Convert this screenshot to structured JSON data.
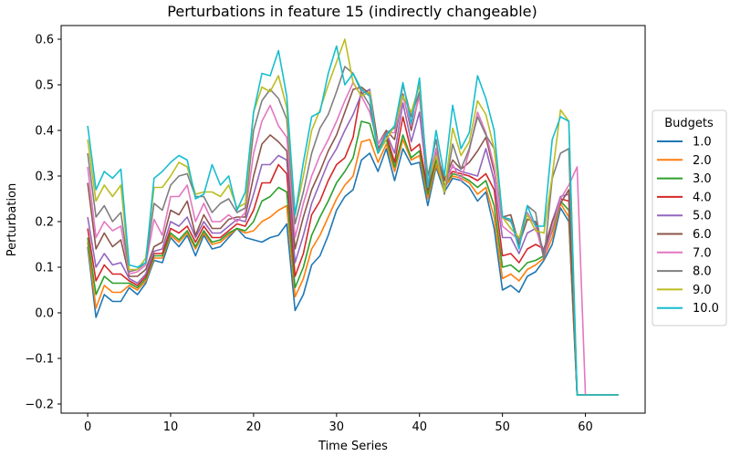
{
  "chart_data": {
    "type": "line",
    "title": "Perturbations in feature 15 (indirectly changeable)",
    "xlabel": "Time Series",
    "ylabel": "Perturbation",
    "xlim": [
      -3.2,
      67.2
    ],
    "ylim": [
      -0.22,
      0.63
    ],
    "xticks": [
      0,
      10,
      20,
      30,
      40,
      50,
      60
    ],
    "yticks": [
      -0.2,
      -0.1,
      0.0,
      0.1,
      0.2,
      0.3,
      0.4,
      0.5,
      0.6
    ],
    "grid": false,
    "legend_title": "Budgets",
    "legend_position": "outside-right",
    "x": [
      0,
      1,
      2,
      3,
      4,
      5,
      6,
      7,
      8,
      9,
      10,
      11,
      12,
      13,
      14,
      15,
      16,
      17,
      18,
      19,
      20,
      21,
      22,
      23,
      24,
      25,
      26,
      27,
      28,
      29,
      30,
      31,
      32,
      33,
      34,
      35,
      36,
      37,
      38,
      39,
      40,
      41,
      42,
      43,
      44,
      45,
      46,
      47,
      48,
      49,
      50,
      51,
      52,
      53,
      54,
      55,
      56,
      57,
      58,
      59,
      60,
      61,
      62,
      63,
      64
    ],
    "series": [
      {
        "name": "1.0",
        "color": "#1f77b4",
        "values": [
          0.145,
          -0.01,
          0.04,
          0.025,
          0.025,
          0.055,
          0.04,
          0.065,
          0.115,
          0.11,
          0.165,
          0.145,
          0.17,
          0.125,
          0.17,
          0.14,
          0.145,
          0.165,
          0.185,
          0.165,
          0.16,
          0.155,
          0.165,
          0.17,
          0.195,
          0.005,
          0.04,
          0.105,
          0.125,
          0.17,
          0.225,
          0.255,
          0.27,
          0.335,
          0.35,
          0.31,
          0.36,
          0.29,
          0.36,
          0.325,
          0.33,
          0.235,
          0.32,
          0.265,
          0.295,
          0.29,
          0.275,
          0.245,
          0.265,
          0.185,
          0.05,
          0.06,
          0.045,
          0.08,
          0.09,
          0.115,
          0.15,
          0.23,
          0.2,
          -0.18,
          -0.18,
          -0.18,
          -0.18,
          -0.18,
          -0.18
        ]
      },
      {
        "name": "2.0",
        "color": "#ff7f0e",
        "values": [
          0.155,
          0.01,
          0.06,
          0.045,
          0.045,
          0.06,
          0.05,
          0.07,
          0.12,
          0.12,
          0.17,
          0.155,
          0.175,
          0.14,
          0.175,
          0.15,
          0.155,
          0.17,
          0.185,
          0.175,
          0.18,
          0.2,
          0.21,
          0.225,
          0.235,
          0.035,
          0.075,
          0.14,
          0.17,
          0.21,
          0.25,
          0.28,
          0.3,
          0.375,
          0.38,
          0.33,
          0.37,
          0.31,
          0.38,
          0.335,
          0.345,
          0.25,
          0.325,
          0.275,
          0.3,
          0.295,
          0.285,
          0.26,
          0.275,
          0.21,
          0.075,
          0.085,
          0.07,
          0.095,
          0.105,
          0.12,
          0.165,
          0.24,
          0.21,
          -0.18,
          -0.18,
          -0.18,
          -0.18,
          -0.18,
          -0.18
        ]
      },
      {
        "name": "3.0",
        "color": "#2ca02c",
        "values": [
          0.165,
          0.04,
          0.08,
          0.065,
          0.065,
          0.065,
          0.055,
          0.075,
          0.125,
          0.125,
          0.175,
          0.16,
          0.18,
          0.145,
          0.18,
          0.155,
          0.16,
          0.175,
          0.185,
          0.18,
          0.2,
          0.245,
          0.255,
          0.275,
          0.265,
          0.055,
          0.1,
          0.17,
          0.21,
          0.245,
          0.285,
          0.31,
          0.34,
          0.42,
          0.415,
          0.35,
          0.38,
          0.32,
          0.39,
          0.34,
          0.355,
          0.26,
          0.335,
          0.28,
          0.305,
          0.3,
          0.29,
          0.275,
          0.29,
          0.235,
          0.1,
          0.105,
          0.09,
          0.11,
          0.115,
          0.125,
          0.18,
          0.245,
          0.225,
          -0.18,
          -0.18,
          -0.18,
          -0.18,
          -0.18,
          -0.18
        ]
      },
      {
        "name": "4.0",
        "color": "#d62728",
        "values": [
          0.185,
          0.07,
          0.105,
          0.085,
          0.085,
          0.07,
          0.06,
          0.08,
          0.13,
          0.13,
          0.185,
          0.175,
          0.19,
          0.155,
          0.19,
          0.165,
          0.165,
          0.18,
          0.195,
          0.19,
          0.225,
          0.285,
          0.285,
          0.325,
          0.305,
          0.08,
          0.13,
          0.215,
          0.245,
          0.29,
          0.325,
          0.34,
          0.385,
          0.49,
          0.475,
          0.36,
          0.39,
          0.33,
          0.43,
          0.355,
          0.37,
          0.27,
          0.345,
          0.29,
          0.31,
          0.305,
          0.3,
          0.29,
          0.305,
          0.27,
          0.125,
          0.13,
          0.11,
          0.14,
          0.15,
          0.14,
          0.2,
          0.25,
          0.245,
          -0.18,
          -0.18,
          -0.18,
          -0.18,
          -0.18,
          -0.18
        ]
      },
      {
        "name": "5.0",
        "color": "#9467bd",
        "values": [
          0.21,
          0.1,
          0.13,
          0.105,
          0.11,
          0.075,
          0.065,
          0.085,
          0.135,
          0.14,
          0.2,
          0.19,
          0.21,
          0.165,
          0.2,
          0.175,
          0.175,
          0.19,
          0.205,
          0.2,
          0.26,
          0.325,
          0.325,
          0.345,
          0.335,
          0.11,
          0.17,
          0.24,
          0.285,
          0.33,
          0.36,
          0.4,
          0.435,
          0.48,
          0.49,
          0.37,
          0.395,
          0.35,
          0.46,
          0.375,
          0.44,
          0.275,
          0.35,
          0.295,
          0.32,
          0.31,
          0.305,
          0.3,
          0.36,
          0.29,
          0.165,
          0.165,
          0.13,
          0.175,
          0.185,
          0.135,
          0.2,
          0.255,
          0.26,
          -0.18,
          -0.18,
          -0.18,
          -0.18,
          -0.18,
          -0.18
        ]
      },
      {
        "name": "6.0",
        "color": "#8c564b",
        "values": [
          0.285,
          0.14,
          0.175,
          0.145,
          0.16,
          0.08,
          0.08,
          0.095,
          0.145,
          0.155,
          0.225,
          0.215,
          0.245,
          0.17,
          0.215,
          0.185,
          0.185,
          0.205,
          0.21,
          0.21,
          0.3,
          0.37,
          0.39,
          0.375,
          0.355,
          0.14,
          0.21,
          0.27,
          0.31,
          0.355,
          0.39,
          0.44,
          0.49,
          0.495,
          0.48,
          0.37,
          0.4,
          0.38,
          0.48,
          0.4,
          0.48,
          0.275,
          0.36,
          0.29,
          0.335,
          0.315,
          0.33,
          0.355,
          0.385,
          0.31,
          0.21,
          0.215,
          0.15,
          0.205,
          0.2,
          0.125,
          0.2,
          0.24,
          0.27,
          -0.18,
          -0.18,
          -0.18,
          -0.18,
          -0.18,
          -0.18
        ]
      },
      {
        "name": "7.0",
        "color": "#e377c2",
        "values": [
          0.32,
          0.165,
          0.2,
          0.18,
          0.19,
          0.085,
          0.09,
          0.105,
          0.205,
          0.17,
          0.255,
          0.255,
          0.28,
          0.2,
          0.24,
          0.2,
          0.2,
          0.215,
          0.2,
          0.22,
          0.35,
          0.42,
          0.455,
          0.41,
          0.385,
          0.165,
          0.24,
          0.3,
          0.345,
          0.38,
          0.42,
          0.465,
          0.505,
          0.475,
          0.44,
          0.37,
          0.395,
          0.395,
          0.475,
          0.41,
          0.475,
          0.285,
          0.36,
          0.27,
          0.325,
          0.29,
          0.355,
          0.44,
          0.395,
          0.32,
          0.19,
          0.175,
          0.16,
          0.22,
          0.19,
          0.12,
          0.185,
          0.25,
          0.28,
          0.32,
          -0.18,
          -0.18,
          -0.18,
          -0.18,
          -0.18
        ]
      },
      {
        "name": "8.0",
        "color": "#7f7f7f",
        "values": [
          0.35,
          0.21,
          0.235,
          0.2,
          0.22,
          0.09,
          0.095,
          0.11,
          0.24,
          0.225,
          0.28,
          0.3,
          0.305,
          0.255,
          0.255,
          0.22,
          0.24,
          0.25,
          0.22,
          0.23,
          0.4,
          0.465,
          0.49,
          0.47,
          0.425,
          0.195,
          0.265,
          0.35,
          0.405,
          0.435,
          0.485,
          0.54,
          0.525,
          0.485,
          0.455,
          0.355,
          0.395,
          0.405,
          0.5,
          0.43,
          0.485,
          0.3,
          0.38,
          0.26,
          0.37,
          0.315,
          0.36,
          0.43,
          0.39,
          0.36,
          0.21,
          0.2,
          0.16,
          0.235,
          0.22,
          0.115,
          0.295,
          0.35,
          0.36,
          -0.18,
          -0.18,
          -0.18,
          -0.18,
          -0.18,
          -0.18
        ]
      },
      {
        "name": "9.0",
        "color": "#bcbd22",
        "values": [
          0.38,
          0.245,
          0.28,
          0.255,
          0.28,
          0.095,
          0.095,
          0.12,
          0.275,
          0.275,
          0.3,
          0.33,
          0.32,
          0.26,
          0.265,
          0.265,
          0.255,
          0.28,
          0.23,
          0.24,
          0.44,
          0.495,
          0.485,
          0.52,
          0.45,
          0.215,
          0.3,
          0.4,
          0.445,
          0.5,
          0.55,
          0.6,
          0.505,
          0.475,
          0.485,
          0.35,
          0.38,
          0.41,
          0.475,
          0.44,
          0.5,
          0.285,
          0.345,
          0.265,
          0.405,
          0.345,
          0.375,
          0.465,
          0.435,
          0.36,
          0.21,
          0.185,
          0.165,
          0.215,
          0.18,
          0.175,
          0.3,
          0.445,
          0.42,
          -0.18,
          -0.18,
          -0.18,
          -0.18,
          -0.18,
          -0.18
        ]
      },
      {
        "name": "10.0",
        "color": "#17becf",
        "values": [
          0.41,
          0.27,
          0.31,
          0.295,
          0.315,
          0.105,
          0.1,
          0.11,
          0.295,
          0.31,
          0.33,
          0.345,
          0.335,
          0.25,
          0.26,
          0.325,
          0.28,
          0.3,
          0.225,
          0.265,
          0.44,
          0.525,
          0.52,
          0.575,
          0.475,
          0.215,
          0.33,
          0.43,
          0.44,
          0.525,
          0.585,
          0.5,
          0.525,
          0.49,
          0.475,
          0.35,
          0.39,
          0.41,
          0.505,
          0.415,
          0.515,
          0.275,
          0.4,
          0.3,
          0.455,
          0.36,
          0.395,
          0.52,
          0.47,
          0.4,
          0.21,
          0.205,
          0.14,
          0.235,
          0.19,
          0.19,
          0.38,
          0.43,
          0.42,
          -0.18,
          -0.18,
          -0.18,
          -0.18,
          -0.18,
          -0.18
        ]
      }
    ]
  }
}
